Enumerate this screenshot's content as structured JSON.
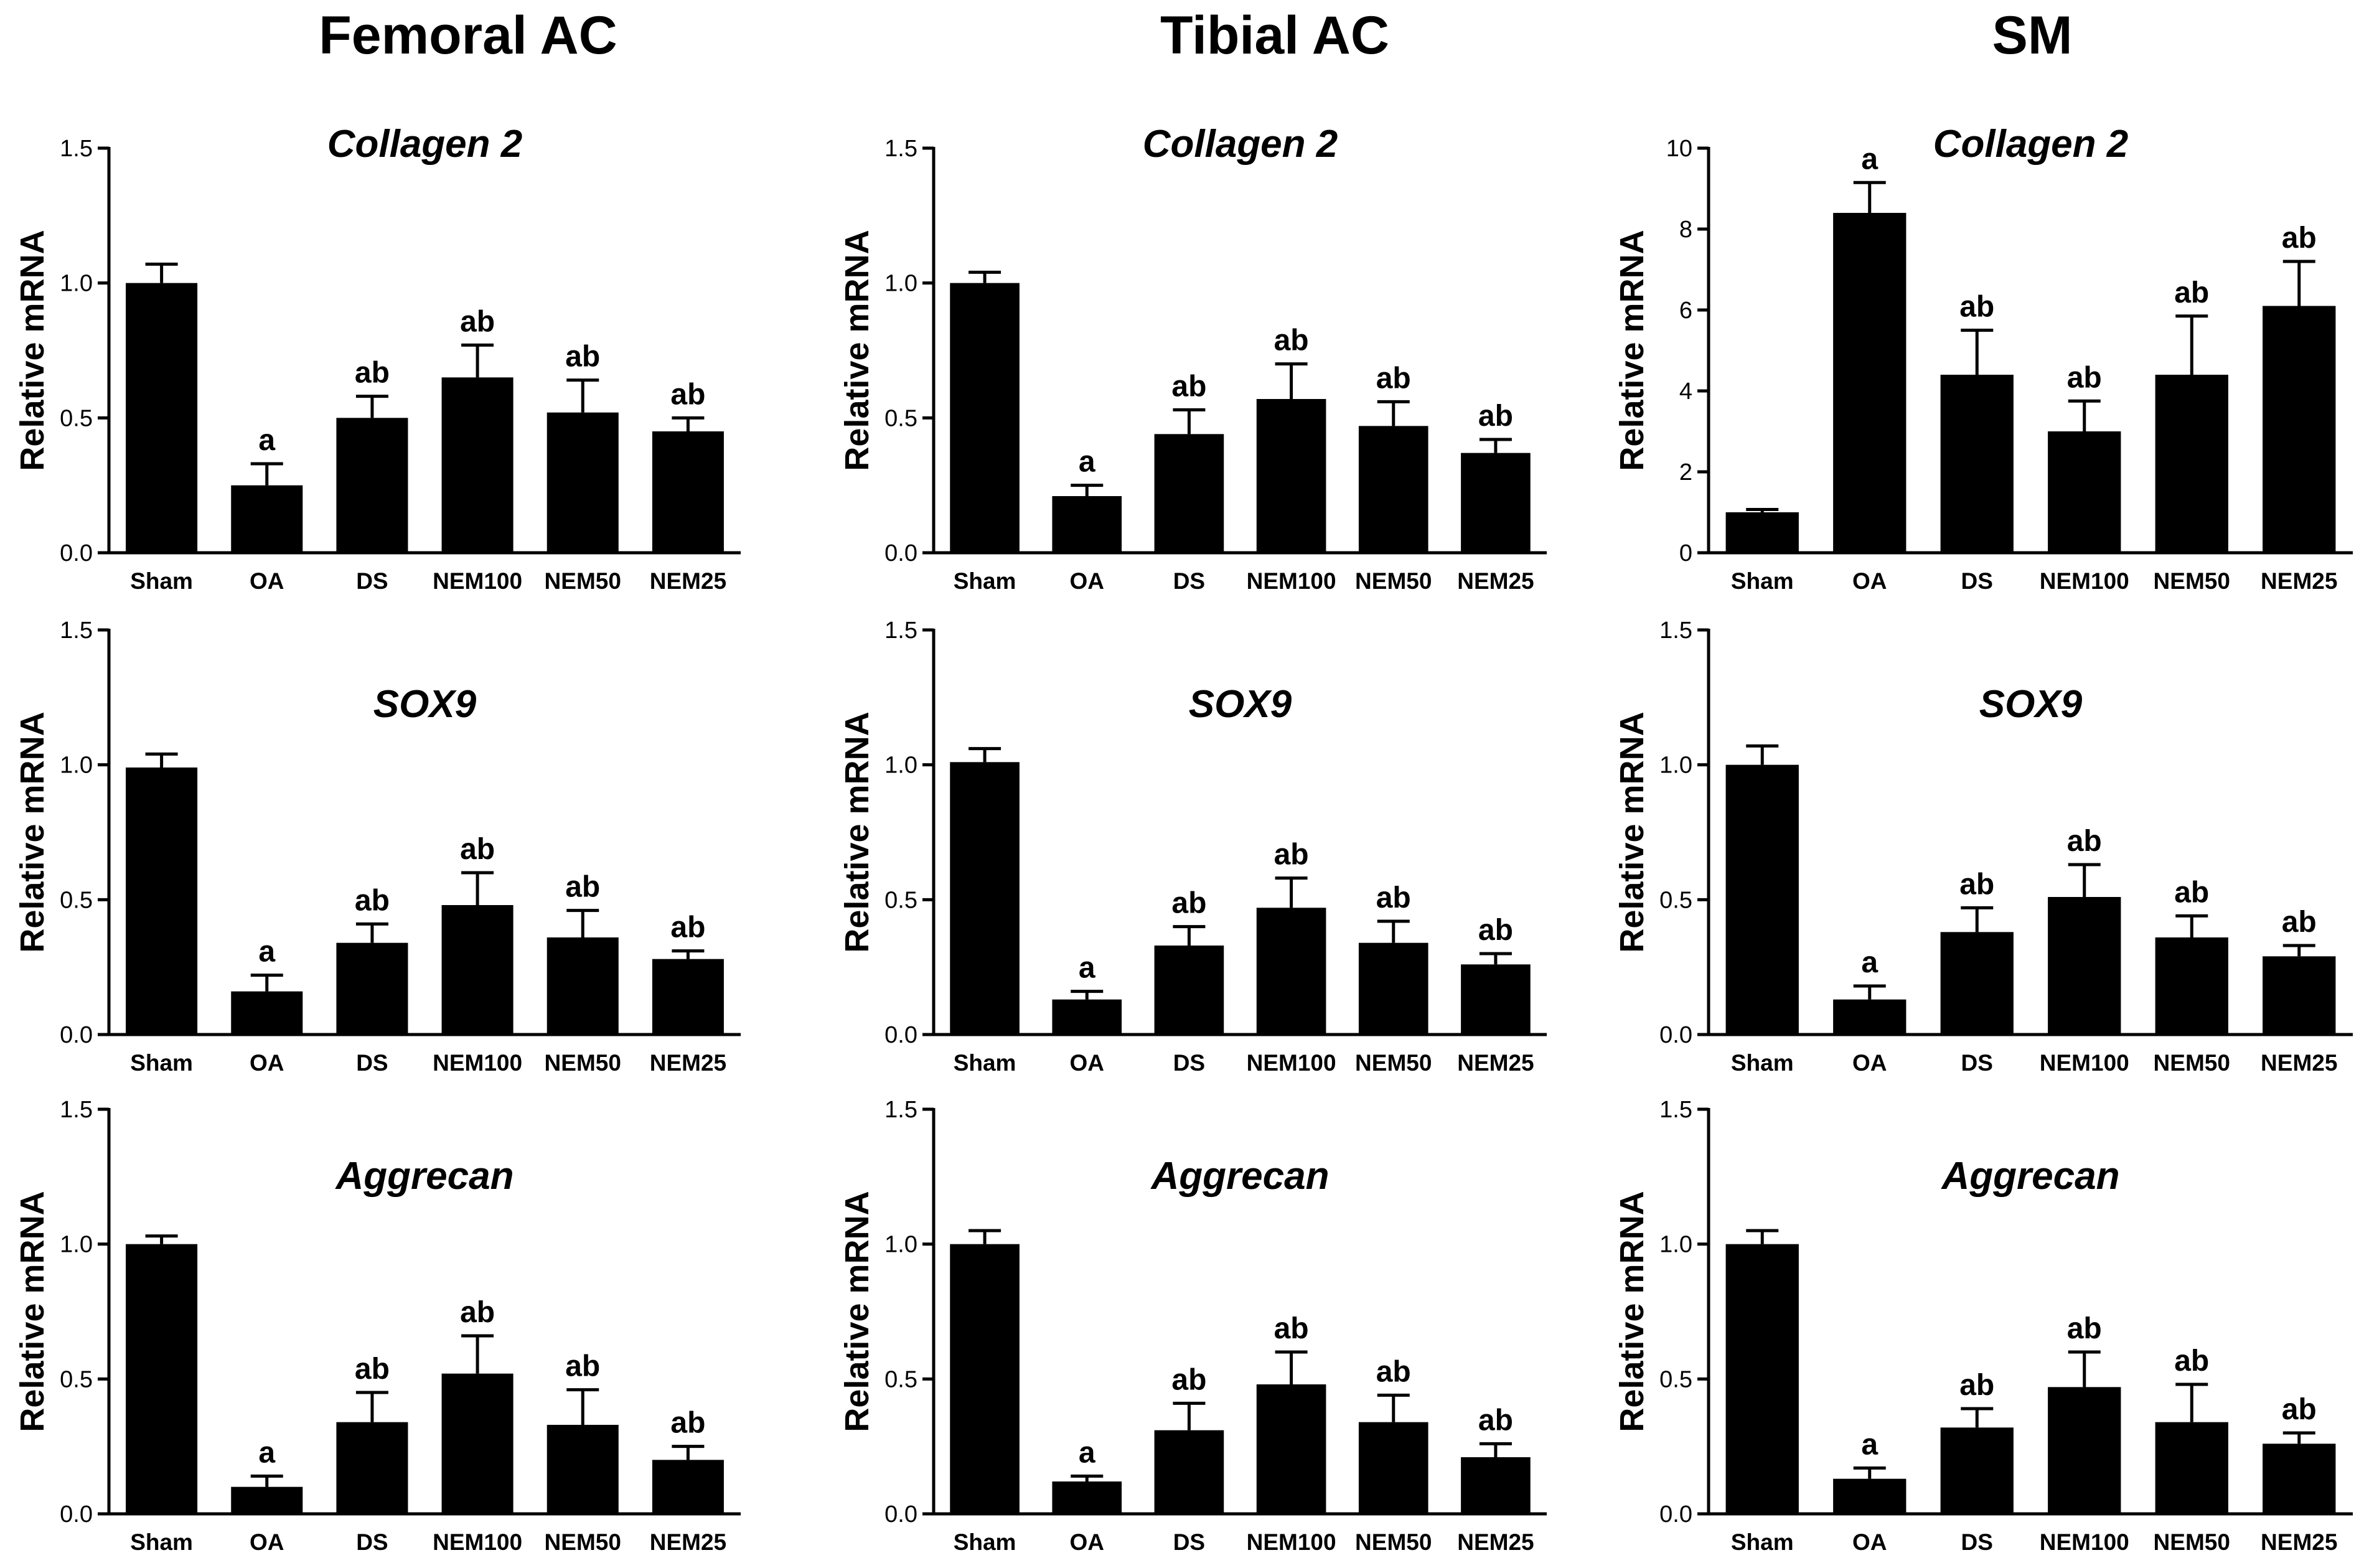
{
  "figure": {
    "columns": [
      "Femoral AC",
      "Tibial AC",
      "SM"
    ],
    "rows": [
      "Collagen 2",
      "SOX9",
      "Aggrecan"
    ]
  },
  "colors": {
    "bar": "#000000",
    "axis": "#000000",
    "background": "#ffffff"
  },
  "chart_data": [
    {
      "type": "bar",
      "column": "Femoral AC",
      "title": "Collagen 2",
      "ylabel": "Relative mRNA",
      "categories": [
        "Sham",
        "OA",
        "DS",
        "NEM100",
        "NEM50",
        "NEM25"
      ],
      "values": [
        1.0,
        0.25,
        0.5,
        0.65,
        0.52,
        0.45
      ],
      "errors": [
        0.07,
        0.08,
        0.08,
        0.12,
        0.12,
        0.05
      ],
      "labels": [
        "",
        "a",
        "ab",
        "ab",
        "ab",
        "ab"
      ],
      "ylim": [
        0,
        1.5
      ],
      "yticks": [
        "0.0",
        "0.5",
        "1.0",
        "1.5"
      ],
      "ytick_values": [
        0,
        0.5,
        1.0,
        1.5
      ]
    },
    {
      "type": "bar",
      "column": "Tibial AC",
      "title": "Collagen 2",
      "ylabel": "Relative mRNA",
      "categories": [
        "Sham",
        "OA",
        "DS",
        "NEM100",
        "NEM50",
        "NEM25"
      ],
      "values": [
        1.0,
        0.21,
        0.44,
        0.57,
        0.47,
        0.37
      ],
      "errors": [
        0.04,
        0.04,
        0.09,
        0.13,
        0.09,
        0.05
      ],
      "labels": [
        "",
        "a",
        "ab",
        "ab",
        "ab",
        "ab"
      ],
      "ylim": [
        0,
        1.5
      ],
      "yticks": [
        "0.0",
        "0.5",
        "1.0",
        "1.5"
      ],
      "ytick_values": [
        0,
        0.5,
        1.0,
        1.5
      ]
    },
    {
      "type": "bar",
      "column": "SM",
      "title": "Collagen 2",
      "ylabel": "Relative mRNA",
      "categories": [
        "Sham",
        "OA",
        "DS",
        "NEM100",
        "NEM50",
        "NEM25"
      ],
      "values": [
        1.0,
        8.4,
        4.4,
        3.0,
        4.4,
        6.1
      ],
      "errors": [
        0.07,
        0.75,
        1.1,
        0.75,
        1.45,
        1.1
      ],
      "labels": [
        "",
        "a",
        "ab",
        "ab",
        "ab",
        "ab"
      ],
      "ylim": [
        0,
        10
      ],
      "yticks": [
        "0",
        "2",
        "4",
        "6",
        "8",
        "10"
      ],
      "ytick_values": [
        0,
        2,
        4,
        6,
        8,
        10
      ]
    },
    {
      "type": "bar",
      "column": "Femoral AC",
      "title": "SOX9",
      "ylabel": "Relative mRNA",
      "categories": [
        "Sham",
        "OA",
        "DS",
        "NEM100",
        "NEM50",
        "NEM25"
      ],
      "values": [
        0.99,
        0.16,
        0.34,
        0.48,
        0.36,
        0.28
      ],
      "errors": [
        0.05,
        0.06,
        0.07,
        0.12,
        0.1,
        0.03
      ],
      "labels": [
        "",
        "a",
        "ab",
        "ab",
        "ab",
        "ab"
      ],
      "ylim": [
        0,
        1.5
      ],
      "yticks": [
        "0.0",
        "0.5",
        "1.0",
        "1.5"
      ],
      "ytick_values": [
        0,
        0.5,
        1.0,
        1.5
      ]
    },
    {
      "type": "bar",
      "column": "Tibial AC",
      "title": "SOX9",
      "ylabel": "Relative mRNA",
      "categories": [
        "Sham",
        "OA",
        "DS",
        "NEM100",
        "NEM50",
        "NEM25"
      ],
      "values": [
        1.01,
        0.13,
        0.33,
        0.47,
        0.34,
        0.26
      ],
      "errors": [
        0.05,
        0.03,
        0.07,
        0.11,
        0.08,
        0.04
      ],
      "labels": [
        "",
        "a",
        "ab",
        "ab",
        "ab",
        "ab"
      ],
      "ylim": [
        0,
        1.5
      ],
      "yticks": [
        "0.0",
        "0.5",
        "1.0",
        "1.5"
      ],
      "ytick_values": [
        0,
        0.5,
        1.0,
        1.5
      ]
    },
    {
      "type": "bar",
      "column": "SM",
      "title": "SOX9",
      "ylabel": "Relative mRNA",
      "categories": [
        "Sham",
        "OA",
        "DS",
        "NEM100",
        "NEM50",
        "NEM25"
      ],
      "values": [
        1.0,
        0.13,
        0.38,
        0.51,
        0.36,
        0.29
      ],
      "errors": [
        0.07,
        0.05,
        0.09,
        0.12,
        0.08,
        0.04
      ],
      "labels": [
        "",
        "a",
        "ab",
        "ab",
        "ab",
        "ab"
      ],
      "ylim": [
        0,
        1.5
      ],
      "yticks": [
        "0.0",
        "0.5",
        "1.0",
        "1.5"
      ],
      "ytick_values": [
        0,
        0.5,
        1.0,
        1.5
      ]
    },
    {
      "type": "bar",
      "column": "Femoral AC",
      "title": "Aggrecan",
      "ylabel": "Relative mRNA",
      "categories": [
        "Sham",
        "OA",
        "DS",
        "NEM100",
        "NEM50",
        "NEM25"
      ],
      "values": [
        1.0,
        0.1,
        0.34,
        0.52,
        0.33,
        0.2
      ],
      "errors": [
        0.03,
        0.04,
        0.11,
        0.14,
        0.13,
        0.05
      ],
      "labels": [
        "",
        "a",
        "ab",
        "ab",
        "ab",
        "ab"
      ],
      "ylim": [
        0,
        1.5
      ],
      "yticks": [
        "0.0",
        "0.5",
        "1.0",
        "1.5"
      ],
      "ytick_values": [
        0,
        0.5,
        1.0,
        1.5
      ]
    },
    {
      "type": "bar",
      "column": "Tibial AC",
      "title": "Aggrecan",
      "ylabel": "Relative mRNA",
      "categories": [
        "Sham",
        "OA",
        "DS",
        "NEM100",
        "NEM50",
        "NEM25"
      ],
      "values": [
        1.0,
        0.12,
        0.31,
        0.48,
        0.34,
        0.21
      ],
      "errors": [
        0.05,
        0.02,
        0.1,
        0.12,
        0.1,
        0.05
      ],
      "labels": [
        "",
        "a",
        "ab",
        "ab",
        "ab",
        "ab"
      ],
      "ylim": [
        0,
        1.5
      ],
      "yticks": [
        "0.0",
        "0.5",
        "1.0",
        "1.5"
      ],
      "ytick_values": [
        0,
        0.5,
        1.0,
        1.5
      ]
    },
    {
      "type": "bar",
      "column": "SM",
      "title": "Aggrecan",
      "ylabel": "Relative mRNA",
      "categories": [
        "Sham",
        "OA",
        "DS",
        "NEM100",
        "NEM50",
        "NEM25"
      ],
      "values": [
        1.0,
        0.13,
        0.32,
        0.47,
        0.34,
        0.26
      ],
      "errors": [
        0.05,
        0.04,
        0.07,
        0.13,
        0.14,
        0.04
      ],
      "labels": [
        "",
        "a",
        "ab",
        "ab",
        "ab",
        "ab"
      ],
      "ylim": [
        0,
        1.5
      ],
      "yticks": [
        "0.0",
        "0.5",
        "1.0",
        "1.5"
      ],
      "ytick_values": [
        0,
        0.5,
        1.0,
        1.5
      ]
    }
  ]
}
